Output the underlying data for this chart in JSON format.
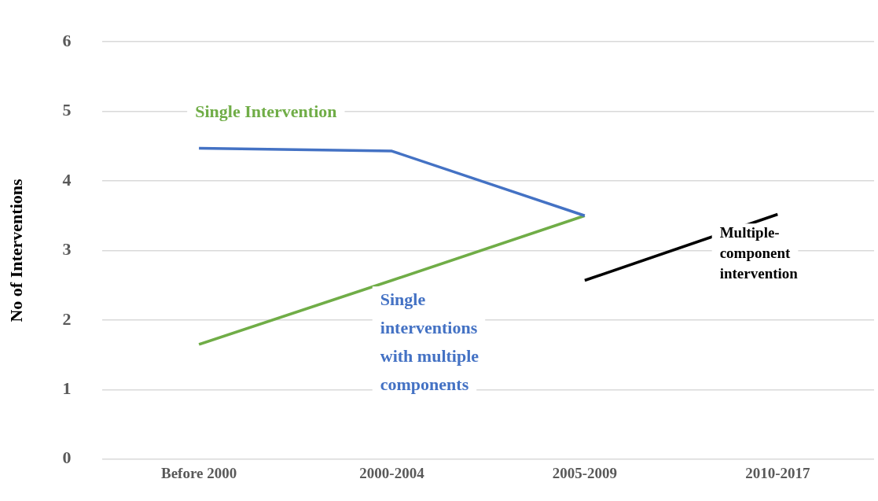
{
  "chart_data": {
    "type": "line",
    "ylabel": "No of Interventions",
    "categories": [
      "Before 2000",
      "2000-2004",
      "2005-2009",
      "2010-2017"
    ],
    "series": [
      {
        "name": "Single interventions with multiple components",
        "color": "#4472c4",
        "values": [
          4.47,
          4.43,
          3.5,
          null
        ]
      },
      {
        "name": "Single Intervention",
        "color": "#70ad47",
        "values": [
          1.65,
          2.57,
          3.5,
          null
        ]
      },
      {
        "name": "Multiple-component intervention",
        "color": "#000000",
        "values": [
          null,
          null,
          2.57,
          3.52
        ]
      }
    ],
    "ylim": [
      0,
      6
    ],
    "yticks": [
      0,
      1,
      2,
      3,
      4,
      5,
      6
    ],
    "grid": "y",
    "legend": false,
    "marker": "none",
    "line_style": "solid"
  }
}
